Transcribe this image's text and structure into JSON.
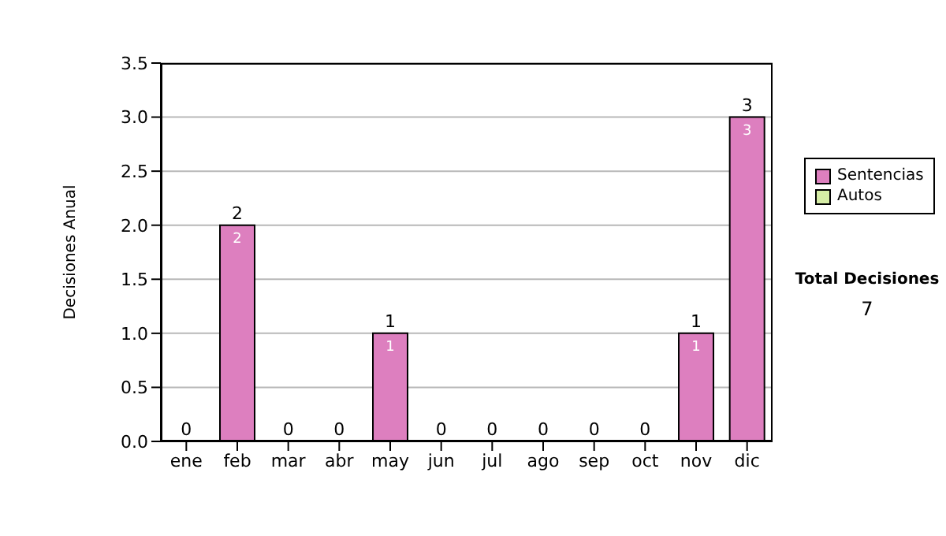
{
  "chart_data": {
    "type": "bar",
    "stacked": true,
    "ylabel": "Decisiones Anual",
    "categories": [
      "ene",
      "feb",
      "mar",
      "abr",
      "may",
      "jun",
      "jul",
      "ago",
      "sep",
      "oct",
      "nov",
      "dic"
    ],
    "series": [
      {
        "name": "Sentencias",
        "color": "#dd7fbf",
        "values": [
          0,
          2,
          0,
          0,
          1,
          0,
          0,
          0,
          0,
          0,
          1,
          3
        ],
        "value_labels": [
          null,
          "2",
          null,
          null,
          "1",
          null,
          null,
          null,
          null,
          null,
          "1",
          "3"
        ]
      },
      {
        "name": "Autos",
        "color": "#d6eda6",
        "values": [
          0,
          0,
          0,
          0,
          0,
          0,
          0,
          0,
          0,
          0,
          0,
          0
        ]
      }
    ],
    "totals": [
      "0",
      "2",
      "0",
      "0",
      "1",
      "0",
      "0",
      "0",
      "0",
      "0",
      "1",
      "3"
    ],
    "ylim": [
      0,
      3.5
    ],
    "yticks": [
      {
        "value": 0,
        "label": "0.0"
      },
      {
        "value": 0.5,
        "label": "0.5"
      },
      {
        "value": 1,
        "label": "1.0"
      },
      {
        "value": 1.5,
        "label": "1.5"
      },
      {
        "value": 2,
        "label": "2.0"
      },
      {
        "value": 2.5,
        "label": "2.5"
      },
      {
        "value": 3,
        "label": "3.0"
      },
      {
        "value": 3.5,
        "label": "3.5"
      }
    ],
    "grid": "y",
    "legend": "right",
    "annotations": [
      "Total Decisiones",
      "7"
    ]
  }
}
